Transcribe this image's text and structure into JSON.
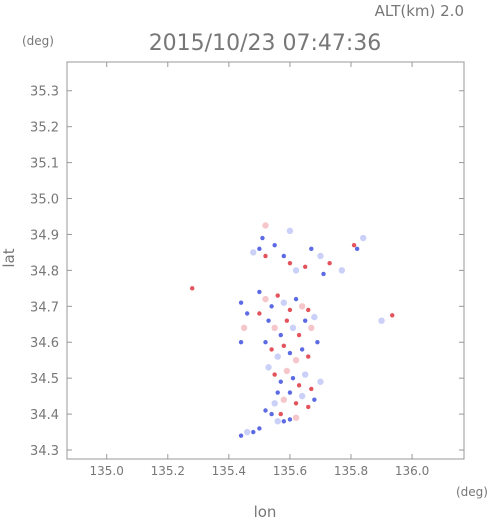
{
  "header": {
    "altitude": "ALT(km)  2.0",
    "timestamp": "2015/10/23 07:47:36"
  },
  "chart_data": {
    "type": "scatter",
    "xlabel": "lon",
    "ylabel": "lat",
    "x_unit": "(deg)",
    "y_unit": "(deg)",
    "xlim": [
      134.87,
      136.17
    ],
    "ylim": [
      34.275,
      35.38
    ],
    "x_ticks": [
      135.0,
      135.2,
      135.4,
      135.6,
      135.8,
      136.0
    ],
    "y_ticks": [
      34.3,
      34.4,
      34.5,
      34.6,
      34.7,
      34.8,
      34.9,
      35.0,
      35.1,
      35.2,
      35.3
    ],
    "x_tick_labels": [
      "135.0",
      "135.2",
      "135.4",
      "135.6",
      "135.8",
      "136.0"
    ],
    "y_tick_labels": [
      "34.3",
      "34.4",
      "34.5",
      "34.6",
      "34.7",
      "34.8",
      "34.9",
      "35.0",
      "35.1",
      "35.2",
      "35.3"
    ],
    "grid": false,
    "colors": {
      "positive": "#e0404a",
      "negative": "#4a5ae0",
      "light_positive": "#f3b4b8",
      "light_negative": "#b8c0f5",
      "axis": "#999999"
    },
    "series": [
      {
        "values": [
          [
            135.52,
            34.925,
            1
          ],
          [
            135.51,
            34.89,
            -1
          ],
          [
            135.5,
            34.86,
            -1
          ],
          [
            135.48,
            34.85,
            -1
          ],
          [
            135.52,
            34.84,
            1
          ],
          [
            135.55,
            34.87,
            -1
          ],
          [
            135.6,
            34.91,
            -1
          ],
          [
            135.58,
            34.84,
            -1
          ],
          [
            135.6,
            34.82,
            1
          ],
          [
            135.62,
            34.8,
            -1
          ],
          [
            135.65,
            34.81,
            1
          ],
          [
            135.67,
            34.86,
            -1
          ],
          [
            135.7,
            34.84,
            -1
          ],
          [
            135.73,
            34.82,
            1
          ],
          [
            135.71,
            34.79,
            -1
          ],
          [
            135.77,
            34.8,
            -1
          ],
          [
            135.81,
            34.87,
            1
          ],
          [
            135.82,
            34.86,
            -1
          ],
          [
            135.84,
            34.89,
            -1
          ],
          [
            135.28,
            34.75,
            1
          ],
          [
            135.935,
            34.675,
            1
          ],
          [
            135.9,
            34.66,
            -1
          ],
          [
            135.44,
            34.71,
            -1
          ],
          [
            135.46,
            34.68,
            -1
          ],
          [
            135.45,
            34.64,
            1
          ],
          [
            135.44,
            34.6,
            -1
          ],
          [
            135.5,
            34.74,
            -1
          ],
          [
            135.52,
            34.72,
            1
          ],
          [
            135.54,
            34.7,
            -1
          ],
          [
            135.56,
            34.73,
            1
          ],
          [
            135.58,
            34.71,
            -1
          ],
          [
            135.6,
            34.69,
            1
          ],
          [
            135.62,
            34.72,
            -1
          ],
          [
            135.64,
            34.7,
            1
          ],
          [
            135.5,
            34.68,
            1
          ],
          [
            135.53,
            34.66,
            -1
          ],
          [
            135.55,
            34.64,
            1
          ],
          [
            135.57,
            34.62,
            -1
          ],
          [
            135.59,
            34.66,
            1
          ],
          [
            135.61,
            34.64,
            -1
          ],
          [
            135.63,
            34.62,
            1
          ],
          [
            135.65,
            34.66,
            -1
          ],
          [
            135.67,
            34.64,
            1
          ],
          [
            135.69,
            34.6,
            -1
          ],
          [
            135.66,
            34.69,
            1
          ],
          [
            135.68,
            34.67,
            -1
          ],
          [
            135.52,
            34.6,
            -1
          ],
          [
            135.54,
            34.58,
            1
          ],
          [
            135.56,
            34.56,
            -1
          ],
          [
            135.58,
            34.59,
            1
          ],
          [
            135.6,
            34.57,
            -1
          ],
          [
            135.62,
            34.55,
            1
          ],
          [
            135.64,
            34.58,
            -1
          ],
          [
            135.66,
            34.56,
            1
          ],
          [
            135.53,
            34.53,
            -1
          ],
          [
            135.55,
            34.51,
            1
          ],
          [
            135.57,
            34.49,
            -1
          ],
          [
            135.59,
            34.52,
            1
          ],
          [
            135.61,
            34.5,
            -1
          ],
          [
            135.63,
            34.48,
            1
          ],
          [
            135.65,
            34.51,
            -1
          ],
          [
            135.67,
            34.47,
            1
          ],
          [
            135.56,
            34.46,
            -1
          ],
          [
            135.58,
            34.44,
            1
          ],
          [
            135.6,
            34.46,
            -1
          ],
          [
            135.62,
            34.43,
            1
          ],
          [
            135.64,
            34.45,
            -1
          ],
          [
            135.66,
            34.42,
            1
          ],
          [
            135.68,
            34.44,
            -1
          ],
          [
            135.7,
            34.49,
            -1
          ],
          [
            135.52,
            34.41,
            -1
          ],
          [
            135.54,
            34.4,
            -1
          ],
          [
            135.56,
            34.38,
            -1
          ],
          [
            135.58,
            34.38,
            -1
          ],
          [
            135.6,
            34.385,
            -1
          ],
          [
            135.62,
            34.39,
            1
          ],
          [
            135.5,
            34.36,
            -1
          ],
          [
            135.48,
            34.35,
            -1
          ],
          [
            135.46,
            34.35,
            -1
          ],
          [
            135.44,
            34.34,
            -1
          ],
          [
            135.57,
            34.4,
            1
          ],
          [
            135.55,
            34.43,
            -1
          ]
        ]
      }
    ]
  }
}
